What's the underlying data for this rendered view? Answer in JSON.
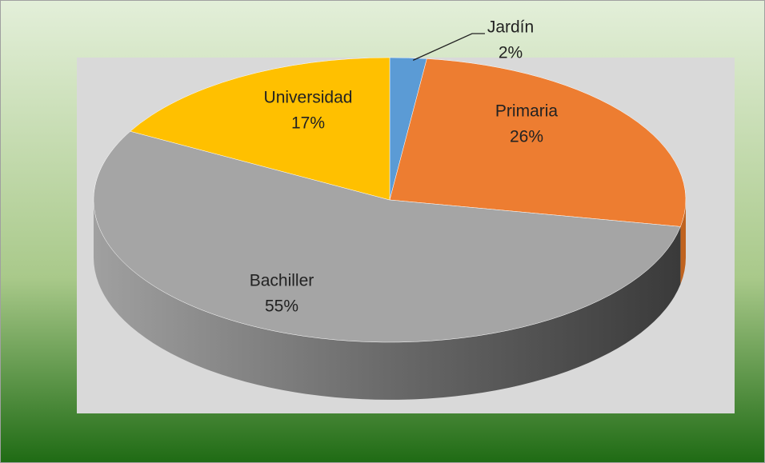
{
  "chart_data": {
    "type": "pie3d",
    "categories": [
      "Jardín",
      "Primaria",
      "Bachiller",
      "Universidad"
    ],
    "values": [
      2,
      26,
      55,
      17
    ],
    "value_labels": [
      "2%",
      "26%",
      "55%",
      "17%"
    ],
    "colors": [
      "#5b9bd5",
      "#ed7d31",
      "#a5a5a5",
      "#ffc000"
    ]
  }
}
